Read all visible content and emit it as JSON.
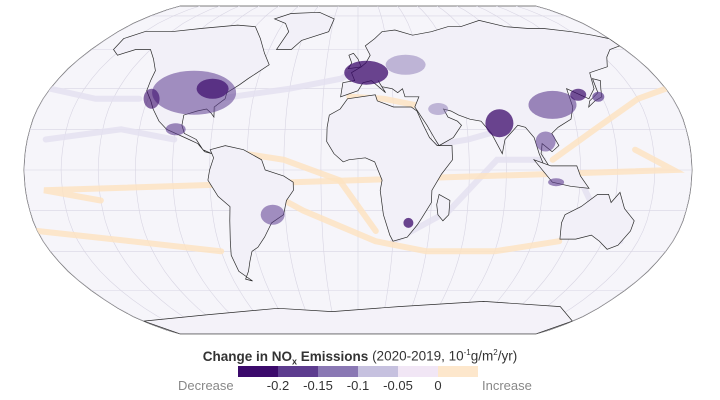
{
  "legend": {
    "title_main": "Change in NO",
    "title_sub": "x",
    "title_main2": " Emissions",
    "title_period": " (2020-2019, 10",
    "title_exp": "-1",
    "title_unit_a": "g/m",
    "title_unit_sup": "2",
    "title_unit_b": "/yr)",
    "decrease_label": "Decrease",
    "increase_label": "Increase",
    "ticks": [
      "-0.2",
      "-0.15",
      "-0.1",
      "-0.05",
      "0"
    ],
    "colors": [
      "#3b0a6b",
      "#5d3c8f",
      "#8a78b4",
      "#c6c1df",
      "#f1e6f5",
      "#fde7cc"
    ]
  },
  "map": {
    "projection": "Robinson",
    "land_fill": "#f2f0f8",
    "ocean_fill": "#f7f6fb",
    "border_color": "#2b2b2b",
    "graticule_color": "#d8d5e3"
  }
}
